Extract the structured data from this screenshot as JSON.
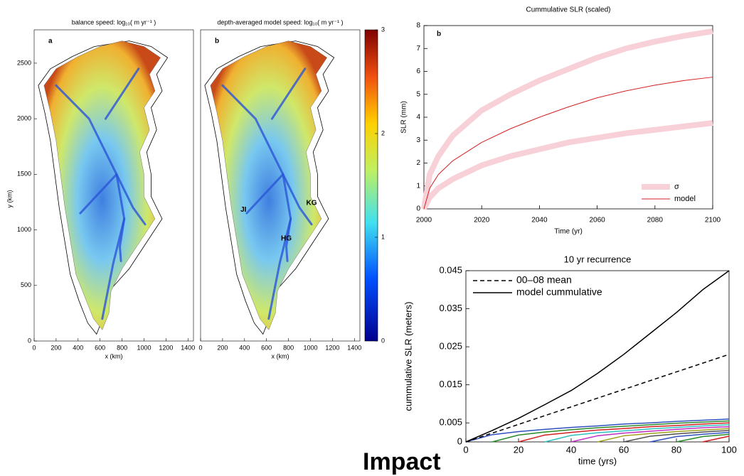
{
  "maps": {
    "panels": [
      {
        "title": "balance speed: log₁₀( m yr⁻¹ )",
        "label": "a"
      },
      {
        "title": "depth-averaged model speed: log₁₀( m yr⁻¹ )",
        "label": "b"
      }
    ],
    "xlabel": "x (km)",
    "ylabel": "y (km)",
    "xlim": [
      0,
      1450
    ],
    "ylim": [
      0,
      2800
    ],
    "xticks": [
      0,
      200,
      400,
      600,
      800,
      1000,
      1200,
      1400
    ],
    "yticks": [
      0,
      500,
      1000,
      1500,
      2000,
      2500
    ],
    "colorbar_ticks": [
      0,
      1,
      2,
      3
    ],
    "annotations": [
      "JI",
      "KG",
      "HG"
    ]
  },
  "chart_data": [
    {
      "type": "line",
      "title": "Cummulative SLR (scaled)",
      "panel_label": "b",
      "xlabel": "Time (yr)",
      "ylabel": "SLR (mm)",
      "x": [
        2000,
        2002,
        2005,
        2010,
        2020,
        2030,
        2040,
        2050,
        2060,
        2070,
        2080,
        2090,
        2100
      ],
      "xlim": [
        2000,
        2100
      ],
      "xticks": [
        2000,
        2020,
        2040,
        2060,
        2080,
        2100
      ],
      "ylim": [
        0,
        8
      ],
      "yticks": [
        0,
        1,
        2,
        3,
        4,
        5,
        6,
        7,
        8
      ],
      "legend": "lower right",
      "series": [
        {
          "name": "σ",
          "color": "#f8d0d8",
          "line_width": 8,
          "values": [
            0,
            1.5,
            2.3,
            3.2,
            4.3,
            5.0,
            5.6,
            6.1,
            6.6,
            7.0,
            7.3,
            7.55,
            7.75
          ],
          "values_lower": [
            0,
            0.5,
            0.9,
            1.3,
            1.9,
            2.3,
            2.6,
            2.9,
            3.1,
            3.3,
            3.45,
            3.6,
            3.75
          ]
        },
        {
          "name": "model",
          "color": "#d42020",
          "line_width": 1,
          "values": [
            0,
            0.9,
            1.5,
            2.1,
            2.9,
            3.5,
            4.0,
            4.45,
            4.85,
            5.15,
            5.4,
            5.6,
            5.75
          ]
        }
      ]
    },
    {
      "type": "line",
      "title": "10 yr recurrence",
      "xlabel": "time (yrs)",
      "ylabel": "cummulative SLR (meters)",
      "x": [
        0,
        10,
        20,
        30,
        40,
        50,
        60,
        70,
        80,
        90,
        100
      ],
      "xlim": [
        0,
        100
      ],
      "xticks": [
        0,
        20,
        40,
        60,
        80,
        100
      ],
      "ylim": [
        0,
        0.045
      ],
      "yticks": [
        0,
        0.005,
        0.015,
        0.025,
        0.035,
        0.045
      ],
      "legend": "upper left",
      "series": [
        {
          "color": "#3050c0",
          "line_width": 1.5,
          "values": [
            0,
            0.0019,
            0.0027,
            0.0033,
            0.0038,
            0.0042,
            0.0047,
            0.005,
            0.0054,
            0.0057,
            0.006
          ]
        },
        {
          "color": "#2a8a2a",
          "line_width": 1.5,
          "values": [
            null,
            0,
            0.0018,
            0.0026,
            0.0032,
            0.0037,
            0.0041,
            0.0045,
            0.0049,
            0.0052,
            0.0055
          ]
        },
        {
          "color": "#d02020",
          "line_width": 1.5,
          "values": [
            null,
            null,
            0,
            0.0018,
            0.0025,
            0.0031,
            0.0035,
            0.004,
            0.0043,
            0.0047,
            0.005
          ]
        },
        {
          "color": "#30c0c0",
          "line_width": 1.5,
          "values": [
            null,
            null,
            null,
            0,
            0.0017,
            0.0024,
            0.0029,
            0.0034,
            0.0038,
            0.0042,
            0.0045
          ]
        },
        {
          "color": "#c030c0",
          "line_width": 1.5,
          "values": [
            null,
            null,
            null,
            null,
            0,
            0.0016,
            0.0023,
            0.0028,
            0.0033,
            0.0037,
            0.004
          ]
        },
        {
          "color": "#a0a020",
          "line_width": 1.5,
          "values": [
            null,
            null,
            null,
            null,
            null,
            0,
            0.0016,
            0.0022,
            0.0027,
            0.0031,
            0.0035
          ]
        },
        {
          "color": "#505050",
          "line_width": 1.5,
          "values": [
            null,
            null,
            null,
            null,
            null,
            null,
            0,
            0.0015,
            0.0021,
            0.0026,
            0.003
          ]
        },
        {
          "color": "#3050c0",
          "line_width": 1.5,
          "values": [
            null,
            null,
            null,
            null,
            null,
            null,
            null,
            0,
            0.0014,
            0.002,
            0.0025
          ]
        },
        {
          "color": "#2a8a2a",
          "line_width": 1.5,
          "values": [
            null,
            null,
            null,
            null,
            null,
            null,
            null,
            null,
            0,
            0.0014,
            0.002
          ]
        },
        {
          "color": "#d02020",
          "line_width": 1.5,
          "values": [
            null,
            null,
            null,
            null,
            null,
            null,
            null,
            null,
            null,
            0,
            0.0015
          ]
        },
        {
          "name": "00–08 mean",
          "color": "#000000",
          "line_width": 1.5,
          "dash": true,
          "values": [
            0,
            0.0023,
            0.0046,
            0.0069,
            0.0092,
            0.0115,
            0.0138,
            0.0161,
            0.0184,
            0.0207,
            0.023
          ]
        },
        {
          "name": "model cummulative",
          "color": "#000000",
          "line_width": 1.5,
          "values": [
            0,
            0.003,
            0.0062,
            0.0098,
            0.0135,
            0.018,
            0.023,
            0.0285,
            0.034,
            0.04,
            0.045
          ]
        }
      ]
    }
  ],
  "footer": "Impact"
}
